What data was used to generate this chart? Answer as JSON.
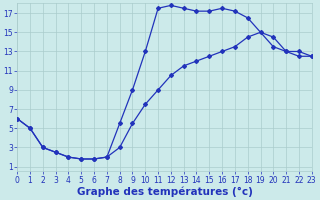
{
  "bg_color": "#cceaea",
  "grid_color": "#aacccc",
  "line_color": "#2233bb",
  "line1_x": [
    0,
    1,
    2,
    3,
    4,
    5,
    6,
    7,
    8,
    9,
    10,
    11,
    12,
    13,
    14,
    15,
    16,
    17,
    18,
    20,
    21,
    22,
    23
  ],
  "line1_y": [
    6.0,
    5.0,
    3.0,
    2.5,
    2.0,
    1.8,
    1.8,
    2.0,
    5.5,
    9.0,
    13.0,
    17.5,
    17.8,
    17.5,
    17.2,
    17.2,
    17.5,
    17.2,
    16.5,
    13.5,
    13.0,
    13.0,
    12.5
  ],
  "line2_x": [
    0,
    1,
    2,
    3,
    4,
    5,
    6,
    7,
    8,
    9,
    10,
    11,
    12,
    13,
    14,
    15,
    16,
    17,
    18,
    19,
    20,
    21,
    22,
    23
  ],
  "line2_y": [
    6.0,
    5.0,
    3.0,
    2.5,
    2.0,
    1.8,
    1.8,
    2.0,
    3.0,
    5.5,
    7.5,
    9.0,
    10.5,
    11.5,
    12.0,
    12.5,
    13.0,
    13.5,
    14.5,
    15.0,
    14.5,
    13.0,
    12.5,
    12.5
  ],
  "xlim": [
    0,
    23
  ],
  "ylim": [
    0.5,
    18.0
  ],
  "xticks": [
    0,
    1,
    2,
    3,
    4,
    5,
    6,
    7,
    8,
    9,
    10,
    11,
    12,
    13,
    14,
    15,
    16,
    17,
    18,
    19,
    20,
    21,
    22,
    23
  ],
  "yticks": [
    1,
    3,
    5,
    7,
    9,
    11,
    13,
    15,
    17
  ],
  "xlabel": "Graphe des températures (°c)",
  "xlabel_fontsize": 7.5,
  "tick_fontsize": 5.5,
  "marker": "D",
  "markersize": 2.0,
  "linewidth": 0.9
}
